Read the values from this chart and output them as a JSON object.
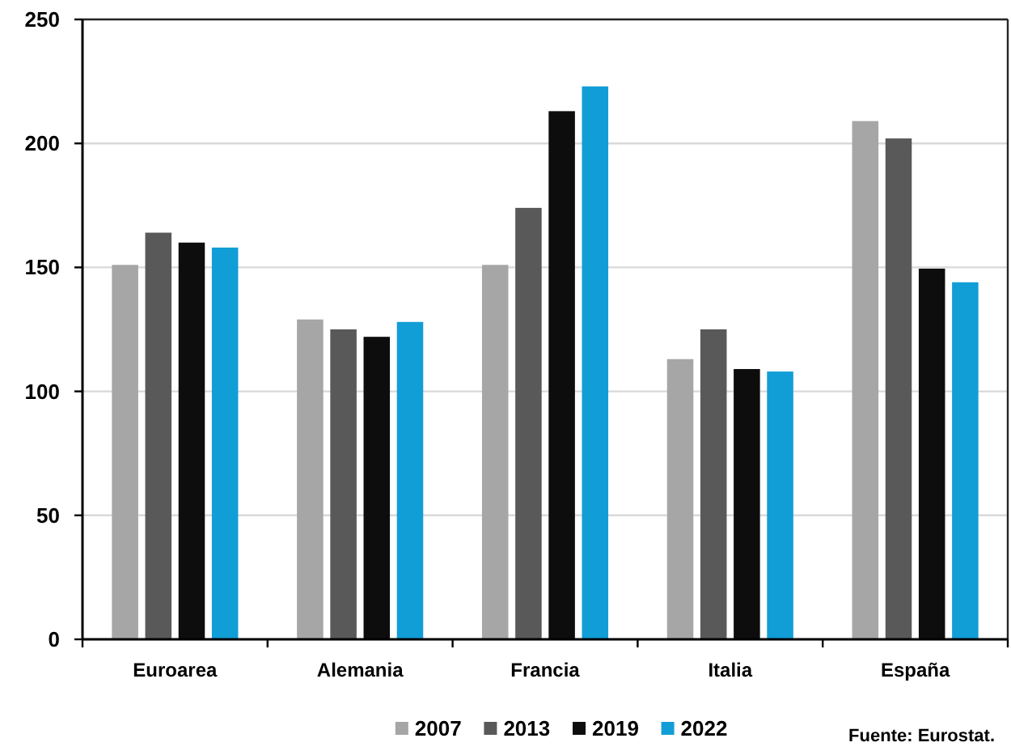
{
  "chart_data": {
    "type": "bar",
    "categories": [
      "Euroarea",
      "Alemania",
      "Francia",
      "Italia",
      "España"
    ],
    "series": [
      {
        "name": "2007",
        "color": "#a6a6a6",
        "values": [
          151,
          129,
          151,
          113,
          209
        ]
      },
      {
        "name": "2013",
        "color": "#595959",
        "values": [
          164,
          125,
          174,
          125,
          202
        ]
      },
      {
        "name": "2019",
        "color": "#0d0d0d",
        "values": [
          160,
          122,
          213,
          109,
          149.5
        ]
      },
      {
        "name": "2022",
        "color": "#119ed6",
        "values": [
          158,
          128,
          223,
          108,
          144
        ]
      }
    ],
    "ylim": [
      0,
      250
    ],
    "yticks": [
      0,
      50,
      100,
      150,
      200,
      250
    ],
    "grid": "y",
    "legend": "bottom",
    "annotations": [
      "Fuente: Eurostat."
    ]
  }
}
